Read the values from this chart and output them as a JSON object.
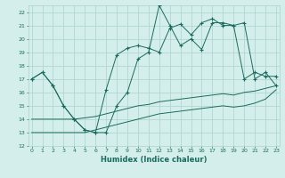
{
  "xlabel": "Humidex (Indice chaleur)",
  "xlim": [
    0,
    23
  ],
  "ylim": [
    12,
    22.5
  ],
  "yticks": [
    12,
    13,
    14,
    15,
    16,
    17,
    18,
    19,
    20,
    21,
    22
  ],
  "xticks": [
    0,
    1,
    2,
    3,
    4,
    5,
    6,
    7,
    8,
    9,
    10,
    11,
    12,
    13,
    14,
    15,
    16,
    17,
    18,
    19,
    20,
    21,
    22,
    23
  ],
  "line_color": "#1a6b5e",
  "bg_color": "#d4eeeb",
  "grid_color": "#aad4cf",
  "series_main": [
    17.0,
    17.5,
    16.5,
    15.0,
    14.0,
    13.2,
    13.0,
    16.2,
    18.8,
    19.3,
    19.5,
    19.3,
    19.0,
    20.8,
    21.1,
    20.3,
    21.2,
    21.5,
    21.0,
    21.0,
    21.2,
    17.0,
    17.5,
    16.5
  ],
  "series_jagged": [
    17.0,
    17.5,
    16.5,
    15.0,
    14.0,
    13.2,
    13.0,
    13.0,
    15.0,
    16.0,
    18.5,
    19.0,
    22.5,
    21.0,
    19.5,
    20.0,
    19.2,
    21.2,
    21.2,
    21.0,
    17.0,
    17.5,
    17.2,
    17.2
  ],
  "series_lower1": [
    13.0,
    13.0,
    13.0,
    13.0,
    13.0,
    13.0,
    13.2,
    13.4,
    13.6,
    13.8,
    14.0,
    14.2,
    14.4,
    14.5,
    14.6,
    14.7,
    14.8,
    14.9,
    15.0,
    14.9,
    15.0,
    15.2,
    15.5,
    16.2
  ],
  "series_lower2": [
    14.0,
    14.0,
    14.0,
    14.0,
    14.0,
    14.1,
    14.2,
    14.4,
    14.6,
    14.8,
    15.0,
    15.1,
    15.3,
    15.4,
    15.5,
    15.6,
    15.7,
    15.8,
    15.9,
    15.8,
    16.0,
    16.1,
    16.3,
    16.5
  ]
}
